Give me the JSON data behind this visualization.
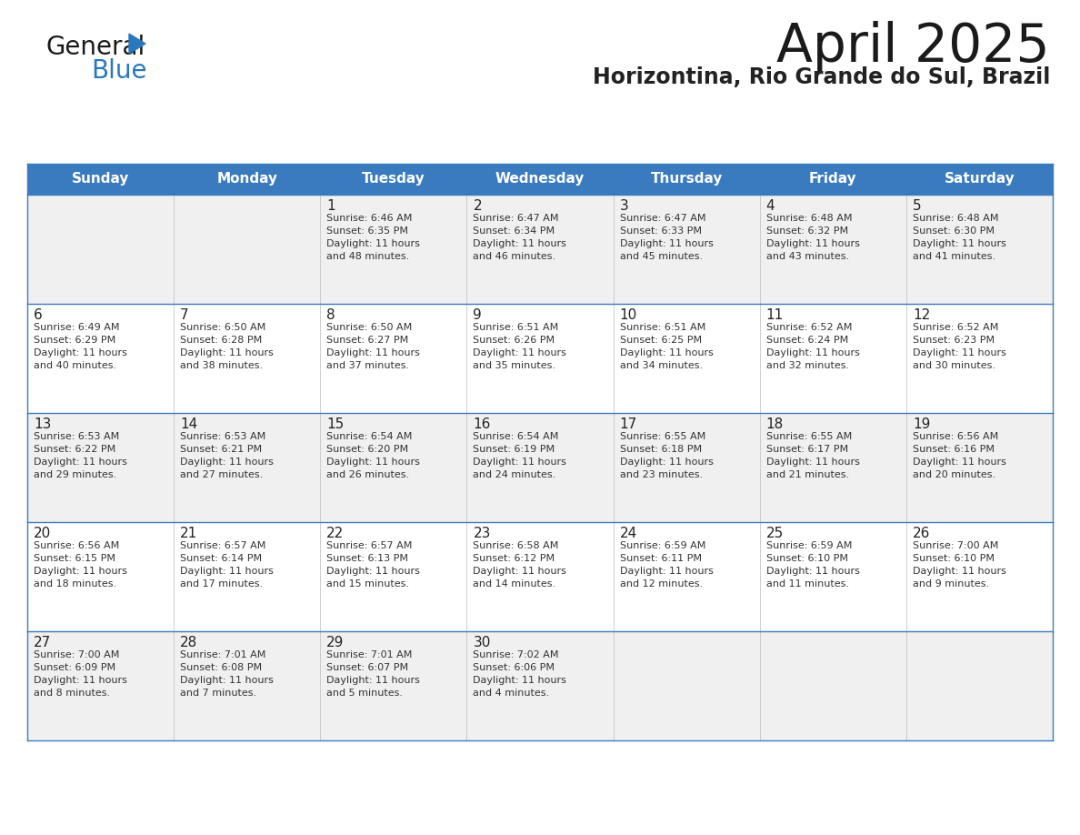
{
  "title": "April 2025",
  "subtitle": "Horizontina, Rio Grande do Sul, Brazil",
  "days_of_week": [
    "Sunday",
    "Monday",
    "Tuesday",
    "Wednesday",
    "Thursday",
    "Friday",
    "Saturday"
  ],
  "header_bg": "#3a7bbf",
  "header_text": "#ffffff",
  "odd_row_bg": "#f0f0f0",
  "even_row_bg": "#ffffff",
  "line_color": "#3a7bbf",
  "day_number_color": "#222222",
  "cell_text_color": "#333333",
  "logo_general_color": "#1a1a1a",
  "logo_blue_color": "#2878be",
  "logo_triangle_color": "#2878be",
  "calendar_data": [
    [
      {
        "day": "",
        "sunrise": "",
        "sunset": "",
        "daylight": ""
      },
      {
        "day": "",
        "sunrise": "",
        "sunset": "",
        "daylight": ""
      },
      {
        "day": "1",
        "sunrise": "6:46 AM",
        "sunset": "6:35 PM",
        "daylight": "11 hours and 48 minutes."
      },
      {
        "day": "2",
        "sunrise": "6:47 AM",
        "sunset": "6:34 PM",
        "daylight": "11 hours and 46 minutes."
      },
      {
        "day": "3",
        "sunrise": "6:47 AM",
        "sunset": "6:33 PM",
        "daylight": "11 hours and 45 minutes."
      },
      {
        "day": "4",
        "sunrise": "6:48 AM",
        "sunset": "6:32 PM",
        "daylight": "11 hours and 43 minutes."
      },
      {
        "day": "5",
        "sunrise": "6:48 AM",
        "sunset": "6:30 PM",
        "daylight": "11 hours and 41 minutes."
      }
    ],
    [
      {
        "day": "6",
        "sunrise": "6:49 AM",
        "sunset": "6:29 PM",
        "daylight": "11 hours and 40 minutes."
      },
      {
        "day": "7",
        "sunrise": "6:50 AM",
        "sunset": "6:28 PM",
        "daylight": "11 hours and 38 minutes."
      },
      {
        "day": "8",
        "sunrise": "6:50 AM",
        "sunset": "6:27 PM",
        "daylight": "11 hours and 37 minutes."
      },
      {
        "day": "9",
        "sunrise": "6:51 AM",
        "sunset": "6:26 PM",
        "daylight": "11 hours and 35 minutes."
      },
      {
        "day": "10",
        "sunrise": "6:51 AM",
        "sunset": "6:25 PM",
        "daylight": "11 hours and 34 minutes."
      },
      {
        "day": "11",
        "sunrise": "6:52 AM",
        "sunset": "6:24 PM",
        "daylight": "11 hours and 32 minutes."
      },
      {
        "day": "12",
        "sunrise": "6:52 AM",
        "sunset": "6:23 PM",
        "daylight": "11 hours and 30 minutes."
      }
    ],
    [
      {
        "day": "13",
        "sunrise": "6:53 AM",
        "sunset": "6:22 PM",
        "daylight": "11 hours and 29 minutes."
      },
      {
        "day": "14",
        "sunrise": "6:53 AM",
        "sunset": "6:21 PM",
        "daylight": "11 hours and 27 minutes."
      },
      {
        "day": "15",
        "sunrise": "6:54 AM",
        "sunset": "6:20 PM",
        "daylight": "11 hours and 26 minutes."
      },
      {
        "day": "16",
        "sunrise": "6:54 AM",
        "sunset": "6:19 PM",
        "daylight": "11 hours and 24 minutes."
      },
      {
        "day": "17",
        "sunrise": "6:55 AM",
        "sunset": "6:18 PM",
        "daylight": "11 hours and 23 minutes."
      },
      {
        "day": "18",
        "sunrise": "6:55 AM",
        "sunset": "6:17 PM",
        "daylight": "11 hours and 21 minutes."
      },
      {
        "day": "19",
        "sunrise": "6:56 AM",
        "sunset": "6:16 PM",
        "daylight": "11 hours and 20 minutes."
      }
    ],
    [
      {
        "day": "20",
        "sunrise": "6:56 AM",
        "sunset": "6:15 PM",
        "daylight": "11 hours and 18 minutes."
      },
      {
        "day": "21",
        "sunrise": "6:57 AM",
        "sunset": "6:14 PM",
        "daylight": "11 hours and 17 minutes."
      },
      {
        "day": "22",
        "sunrise": "6:57 AM",
        "sunset": "6:13 PM",
        "daylight": "11 hours and 15 minutes."
      },
      {
        "day": "23",
        "sunrise": "6:58 AM",
        "sunset": "6:12 PM",
        "daylight": "11 hours and 14 minutes."
      },
      {
        "day": "24",
        "sunrise": "6:59 AM",
        "sunset": "6:11 PM",
        "daylight": "11 hours and 12 minutes."
      },
      {
        "day": "25",
        "sunrise": "6:59 AM",
        "sunset": "6:10 PM",
        "daylight": "11 hours and 11 minutes."
      },
      {
        "day": "26",
        "sunrise": "7:00 AM",
        "sunset": "6:10 PM",
        "daylight": "11 hours and 9 minutes."
      }
    ],
    [
      {
        "day": "27",
        "sunrise": "7:00 AM",
        "sunset": "6:09 PM",
        "daylight": "11 hours and 8 minutes."
      },
      {
        "day": "28",
        "sunrise": "7:01 AM",
        "sunset": "6:08 PM",
        "daylight": "11 hours and 7 minutes."
      },
      {
        "day": "29",
        "sunrise": "7:01 AM",
        "sunset": "6:07 PM",
        "daylight": "11 hours and 5 minutes."
      },
      {
        "day": "30",
        "sunrise": "7:02 AM",
        "sunset": "6:06 PM",
        "daylight": "11 hours and 4 minutes."
      },
      {
        "day": "",
        "sunrise": "",
        "sunset": "",
        "daylight": ""
      },
      {
        "day": "",
        "sunrise": "",
        "sunset": "",
        "daylight": ""
      },
      {
        "day": "",
        "sunrise": "",
        "sunset": "",
        "daylight": ""
      }
    ]
  ]
}
